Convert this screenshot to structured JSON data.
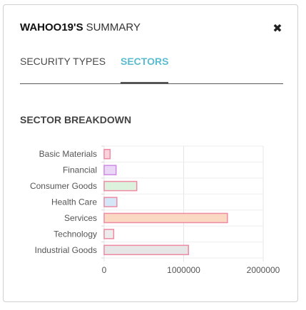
{
  "header": {
    "username": "WAHOO19'S",
    "title_rest": "SUMMARY",
    "close_glyph": "✖"
  },
  "tabs": [
    {
      "label": "SECURITY TYPES",
      "active": false
    },
    {
      "label": "SECTORS",
      "active": true
    }
  ],
  "section": {
    "title": "SECTOR BREAKDOWN"
  },
  "chart_data": {
    "type": "bar",
    "orientation": "horizontal",
    "title": "",
    "xlabel": "",
    "ylabel": "",
    "xlim": [
      0,
      2000000
    ],
    "xticks": [
      "0",
      "1000000",
      "2000000"
    ],
    "grid": true,
    "categories": [
      "Basic Materials",
      "Financial",
      "Consumer Goods",
      "Health Care",
      "Services",
      "Technology",
      "Industrial Goods"
    ],
    "values": [
      75000,
      150000,
      410000,
      160000,
      1550000,
      120000,
      1060000
    ],
    "fill_colors": [
      "#f9d2dc",
      "#ead7f6",
      "#dcf2dc",
      "#d3e7f8",
      "#fbd8c2",
      "#ececec",
      "#e6e6e6"
    ],
    "border_colors": [
      "#ee8aa3",
      "#d089e6",
      "#ee8aa3",
      "#ee8aa3",
      "#ee8aa3",
      "#ee8aa3",
      "#ee8aa3"
    ]
  }
}
